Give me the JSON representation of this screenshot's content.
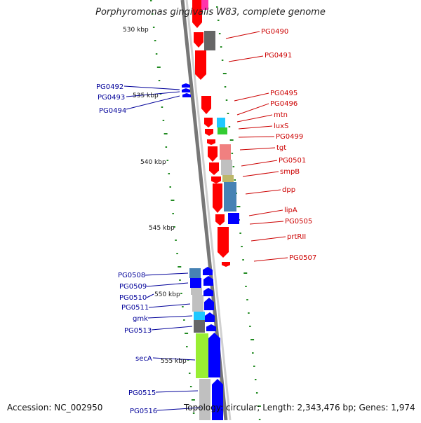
{
  "title": "Porphyromonas gingivalis W83, complete genome",
  "footer": {
    "accession": "Accession: NC_002950",
    "summary": "Topology: circular; Length: 2,343,476 bp; Genes: 1,974"
  },
  "colors": {
    "forward": "#ff0000",
    "reverse": "#0000ff",
    "backbone": "#888888",
    "ticks": "#228b22",
    "label_red": "#cc0000",
    "label_blue": "#000099"
  },
  "scale_labels": [
    "530 kbp",
    "535 kbp",
    "540 kbp",
    "545 kbp",
    "550 kbp",
    "555 kbp"
  ],
  "red_labels": [
    "PG0490",
    "PG0491",
    "PG0495",
    "PG0496",
    "mtn",
    "luxS",
    "PG0499",
    "tgt",
    "PG0501",
    "smpB",
    "dpp",
    "lipA",
    "PG0505",
    "prtRII",
    "PG0507"
  ],
  "blue_labels": [
    "PG0492",
    "PG0493",
    "PG0494",
    "PG0508",
    "PG0509",
    "PG0510",
    "PG0511",
    "gmk",
    "PG0513",
    "secA",
    "PG0515",
    "PG0516"
  ]
}
